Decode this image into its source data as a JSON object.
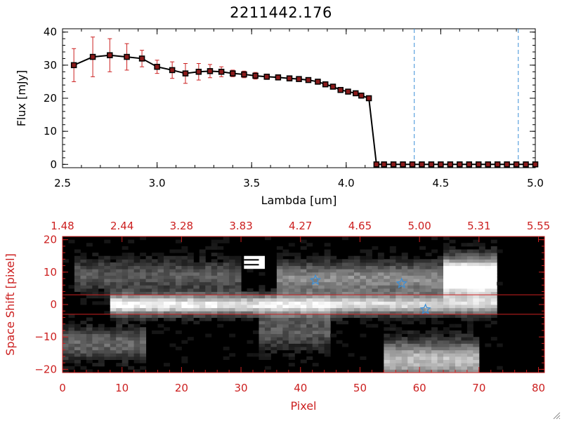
{
  "title": "2211442.176",
  "colors": {
    "axis": "#000000",
    "line": "#000000",
    "marker": "#000000",
    "marker_fill": "#8b1a1a",
    "errorbar": "#cc2020",
    "dashed": "#3a8fd8",
    "panel_accent": "#cc2020",
    "star": "#3a8fd8",
    "background": "#ffffff",
    "image_bg": "#000000"
  },
  "icons": {
    "resize": "resize-grip-icon",
    "star": "star-marker-icon"
  },
  "chart_data": [
    {
      "type": "line",
      "title": "2211442.176",
      "xlabel": "Lambda [um]",
      "ylabel": "Flux [mJy]",
      "xlim": [
        2.5,
        5.0
      ],
      "ylim": [
        -1,
        41
      ],
      "xticks": [
        2.5,
        3.0,
        3.5,
        4.0,
        4.5,
        5.0
      ],
      "xtick_labels": [
        "2.5",
        "3.0",
        "3.5",
        "4.0",
        "4.5",
        "5.0"
      ],
      "yticks": [
        0,
        10,
        20,
        30,
        40
      ],
      "ytick_labels": [
        "0",
        "10",
        "20",
        "30",
        "40"
      ],
      "grid": false,
      "series": [
        {
          "x": [
            2.56,
            2.66,
            2.75,
            2.84,
            2.92,
            3.0,
            3.08,
            3.15,
            3.22,
            3.28,
            3.34,
            3.4,
            3.46,
            3.52,
            3.58,
            3.64,
            3.7,
            3.75,
            3.8,
            3.85,
            3.89,
            3.93,
            3.97,
            4.01,
            4.05,
            4.08,
            4.12,
            4.16,
            4.2,
            4.25,
            4.3,
            4.35,
            4.4,
            4.45,
            4.5,
            4.55,
            4.6,
            4.65,
            4.7,
            4.75,
            4.8,
            4.85,
            4.9,
            4.95,
            5.0
          ],
          "y": [
            30,
            32.5,
            33,
            32.5,
            32,
            29.5,
            28.5,
            27.5,
            28,
            28.2,
            28,
            27.5,
            27.2,
            26.8,
            26.5,
            26.3,
            26,
            25.8,
            25.5,
            25,
            24.2,
            23.5,
            22.5,
            22,
            21.5,
            20.8,
            20,
            0,
            0,
            0,
            0,
            0,
            0,
            0,
            0,
            0,
            0,
            0,
            0,
            0,
            0,
            0,
            0,
            0,
            0
          ],
          "yerr": [
            5,
            6,
            5,
            4,
            2.5,
            2,
            2.5,
            3,
            2.5,
            2,
            1.5,
            1,
            1,
            1,
            0.8,
            0.8,
            0.8,
            0.6,
            0.6,
            0.6,
            0.6,
            0.6,
            0.6,
            0.6,
            0.6,
            0.6,
            0.6,
            0,
            0,
            0,
            0,
            0,
            0,
            0,
            0,
            0,
            0,
            0,
            0,
            0,
            0,
            0,
            0,
            0,
            0
          ]
        }
      ],
      "reference_lines": {
        "orientation": "vertical",
        "style": "dashed",
        "x": [
          4.36,
          4.91
        ]
      },
      "zero_line": {
        "y": 0,
        "style": "dashed"
      }
    },
    {
      "type": "heatmap",
      "xlabel": "Pixel",
      "ylabel": "Space Shift [pixel]",
      "xlim": [
        0,
        81
      ],
      "ylim": [
        -21,
        21
      ],
      "xticks": [
        0,
        10,
        20,
        30,
        40,
        50,
        60,
        70,
        80
      ],
      "xtick_labels": [
        "0",
        "10",
        "20",
        "30",
        "40",
        "50",
        "60",
        "70",
        "80"
      ],
      "yticks": [
        -20,
        -10,
        0,
        10,
        20
      ],
      "ytick_labels": [
        "−20",
        "−10",
        "0",
        "10",
        "20"
      ],
      "top_axis_ticks": [
        0,
        10,
        20,
        30,
        40,
        50,
        60,
        70,
        80
      ],
      "top_axis_labels": [
        "1.48",
        "2.44",
        "3.28",
        "3.83",
        "4.27",
        "4.65",
        "5.00",
        "5.31",
        "5.55"
      ],
      "horizontal_lines": [
        3,
        -3
      ],
      "markers": [
        {
          "symbol": "star",
          "x": 42.5,
          "y": 7.5
        },
        {
          "symbol": "star",
          "x": 57,
          "y": 6.5
        },
        {
          "symbol": "star",
          "x": 61,
          "y": -1.5
        }
      ],
      "blank_region_x": [
        74,
        81
      ],
      "colormap": "grayscale",
      "features": [
        {
          "kind": "ridge",
          "x": [
            8,
            73
          ],
          "y": 0,
          "peak": 1.0
        },
        {
          "kind": "band",
          "x": [
            36,
            73
          ],
          "y": 8,
          "peak": 0.55
        },
        {
          "kind": "band",
          "x": [
            2,
            30
          ],
          "y": 9,
          "peak": 0.35
        },
        {
          "kind": "band",
          "x": [
            0,
            14
          ],
          "y": -12,
          "peak": 0.4
        },
        {
          "kind": "blob",
          "x": [
            64,
            73
          ],
          "y": 9,
          "peak": 0.9
        },
        {
          "kind": "blob",
          "x": [
            54,
            70
          ],
          "y": -17,
          "peak": 0.75
        },
        {
          "kind": "blob",
          "x": [
            33,
            45
          ],
          "y": -8,
          "peak": 0.35
        }
      ]
    }
  ]
}
